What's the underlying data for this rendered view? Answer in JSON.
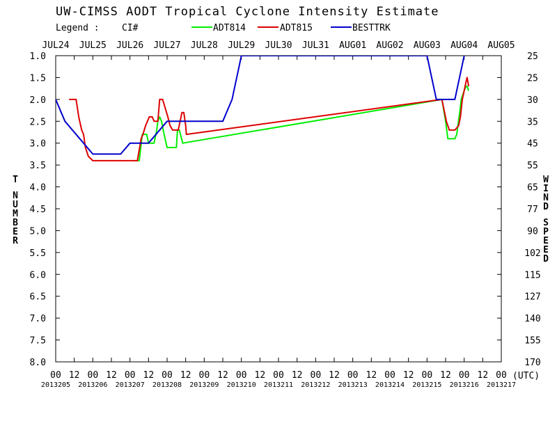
{
  "chart_data": {
    "type": "line",
    "title": "UW-CIMSS AODT Tropical Cyclone Intensity Estimate",
    "legend": {
      "prefix": "Legend :",
      "placement": "top",
      "entries": [
        {
          "name": "CI#",
          "color": "#000000"
        },
        {
          "name": "ADT814",
          "color": "#00ee00"
        },
        {
          "name": "ADT815",
          "color": "#dd0000"
        },
        {
          "name": "BESTTRK",
          "color": "#0000cc"
        }
      ]
    },
    "ylabel_left": "T NUMBER",
    "ylabel_right": "WIND SPEED",
    "x_unit": "(UTC)",
    "y_range": [
      1.0,
      8.0
    ],
    "y_inverted": true,
    "x_range_days": [
      0,
      12
    ],
    "date_labels": [
      "JUL24",
      "JUL25",
      "JUL26",
      "JUL27",
      "JUL28",
      "JUL29",
      "JUL30",
      "JUL31",
      "AUG01",
      "AUG02",
      "AUG03",
      "AUG04",
      "AUG05"
    ],
    "hour_labels": [
      "00",
      "12",
      "00",
      "12",
      "00",
      "12",
      "00",
      "12",
      "00",
      "12",
      "00",
      "12",
      "00",
      "12",
      "00",
      "12",
      "00",
      "12",
      "00",
      "12",
      "00",
      "12",
      "00",
      "12",
      "00"
    ],
    "julian_labels": [
      "2013205",
      "2013206",
      "2013207",
      "2013208",
      "2013209",
      "2013210",
      "2013211",
      "2013212",
      "2013213",
      "2013214",
      "2013215",
      "2013216",
      "2013217"
    ],
    "left_ticks": [
      "1.0",
      "1.5",
      "2.0",
      "2.5",
      "3.0",
      "3.5",
      "4.0",
      "4.5",
      "5.0",
      "5.5",
      "6.0",
      "6.5",
      "7.0",
      "7.5",
      "8.0"
    ],
    "right_ticks": [
      "25",
      "25",
      "30",
      "35",
      "45",
      "55",
      "65",
      "77",
      "90",
      "102",
      "115",
      "127",
      "140",
      "155",
      "170"
    ],
    "grid": false,
    "series": [
      {
        "name": "ADT814",
        "color": "#00ee00",
        "points": [
          [
            2.13,
            3.4
          ],
          [
            2.25,
            3.4
          ],
          [
            2.33,
            2.8
          ],
          [
            2.45,
            2.8
          ],
          [
            2.5,
            3.0
          ],
          [
            2.58,
            3.0
          ],
          [
            2.65,
            3.0
          ],
          [
            2.72,
            2.7
          ],
          [
            2.75,
            2.5
          ],
          [
            2.8,
            2.4
          ],
          [
            2.85,
            2.5
          ],
          [
            2.92,
            2.8
          ],
          [
            3.0,
            3.1
          ],
          [
            3.15,
            3.1
          ],
          [
            3.25,
            3.1
          ],
          [
            3.28,
            2.7
          ],
          [
            3.33,
            2.7
          ],
          [
            3.42,
            3.0
          ],
          [
            10.4,
            2.0
          ],
          [
            10.5,
            2.5
          ],
          [
            10.56,
            2.9
          ],
          [
            10.6,
            2.9
          ],
          [
            10.75,
            2.9
          ],
          [
            10.8,
            2.8
          ],
          [
            10.83,
            2.6
          ],
          [
            10.88,
            2.3
          ],
          [
            10.92,
            2.0
          ],
          [
            11.0,
            1.8
          ],
          [
            11.05,
            1.7
          ],
          [
            11.08,
            1.7
          ],
          [
            11.12,
            1.8
          ]
        ]
      },
      {
        "name": "ADT815",
        "color": "#dd0000",
        "points": [
          [
            0.36,
            2.0
          ],
          [
            0.55,
            2.0
          ],
          [
            0.62,
            2.4
          ],
          [
            0.7,
            2.7
          ],
          [
            0.75,
            2.8
          ],
          [
            0.8,
            3.1
          ],
          [
            0.88,
            3.3
          ],
          [
            1.0,
            3.4
          ],
          [
            1.5,
            3.4
          ],
          [
            2.2,
            3.4
          ],
          [
            2.3,
            2.9
          ],
          [
            2.35,
            2.8
          ],
          [
            2.42,
            2.6
          ],
          [
            2.52,
            2.4
          ],
          [
            2.6,
            2.4
          ],
          [
            2.65,
            2.5
          ],
          [
            2.75,
            2.5
          ],
          [
            2.8,
            2.0
          ],
          [
            2.88,
            2.0
          ],
          [
            2.95,
            2.2
          ],
          [
            3.02,
            2.4
          ],
          [
            3.08,
            2.6
          ],
          [
            3.15,
            2.7
          ],
          [
            3.22,
            2.7
          ],
          [
            3.3,
            2.7
          ],
          [
            3.35,
            2.5
          ],
          [
            3.4,
            2.3
          ],
          [
            3.45,
            2.3
          ],
          [
            3.5,
            2.6
          ],
          [
            3.52,
            2.8
          ],
          [
            10.4,
            2.0
          ],
          [
            10.52,
            2.5
          ],
          [
            10.6,
            2.7
          ],
          [
            10.75,
            2.7
          ],
          [
            10.85,
            2.6
          ],
          [
            10.9,
            2.4
          ],
          [
            10.95,
            2.0
          ],
          [
            11.0,
            1.8
          ],
          [
            11.05,
            1.6
          ],
          [
            11.08,
            1.5
          ],
          [
            11.12,
            1.7
          ]
        ]
      },
      {
        "name": "BESTTRK",
        "color": "#0000cc",
        "points": [
          [
            0,
            2.0
          ],
          [
            0.25,
            2.5
          ],
          [
            0.75,
            3.0
          ],
          [
            1.0,
            3.25
          ],
          [
            1.75,
            3.25
          ],
          [
            2.0,
            3.0
          ],
          [
            2.5,
            3.0
          ],
          [
            3.0,
            2.5
          ],
          [
            4.5,
            2.5
          ],
          [
            4.75,
            2.0
          ],
          [
            5.0,
            1.0
          ],
          [
            10.0,
            1.0
          ],
          [
            10.25,
            2.0
          ],
          [
            10.75,
            2.0
          ],
          [
            11.0,
            1.0
          ]
        ]
      }
    ]
  }
}
